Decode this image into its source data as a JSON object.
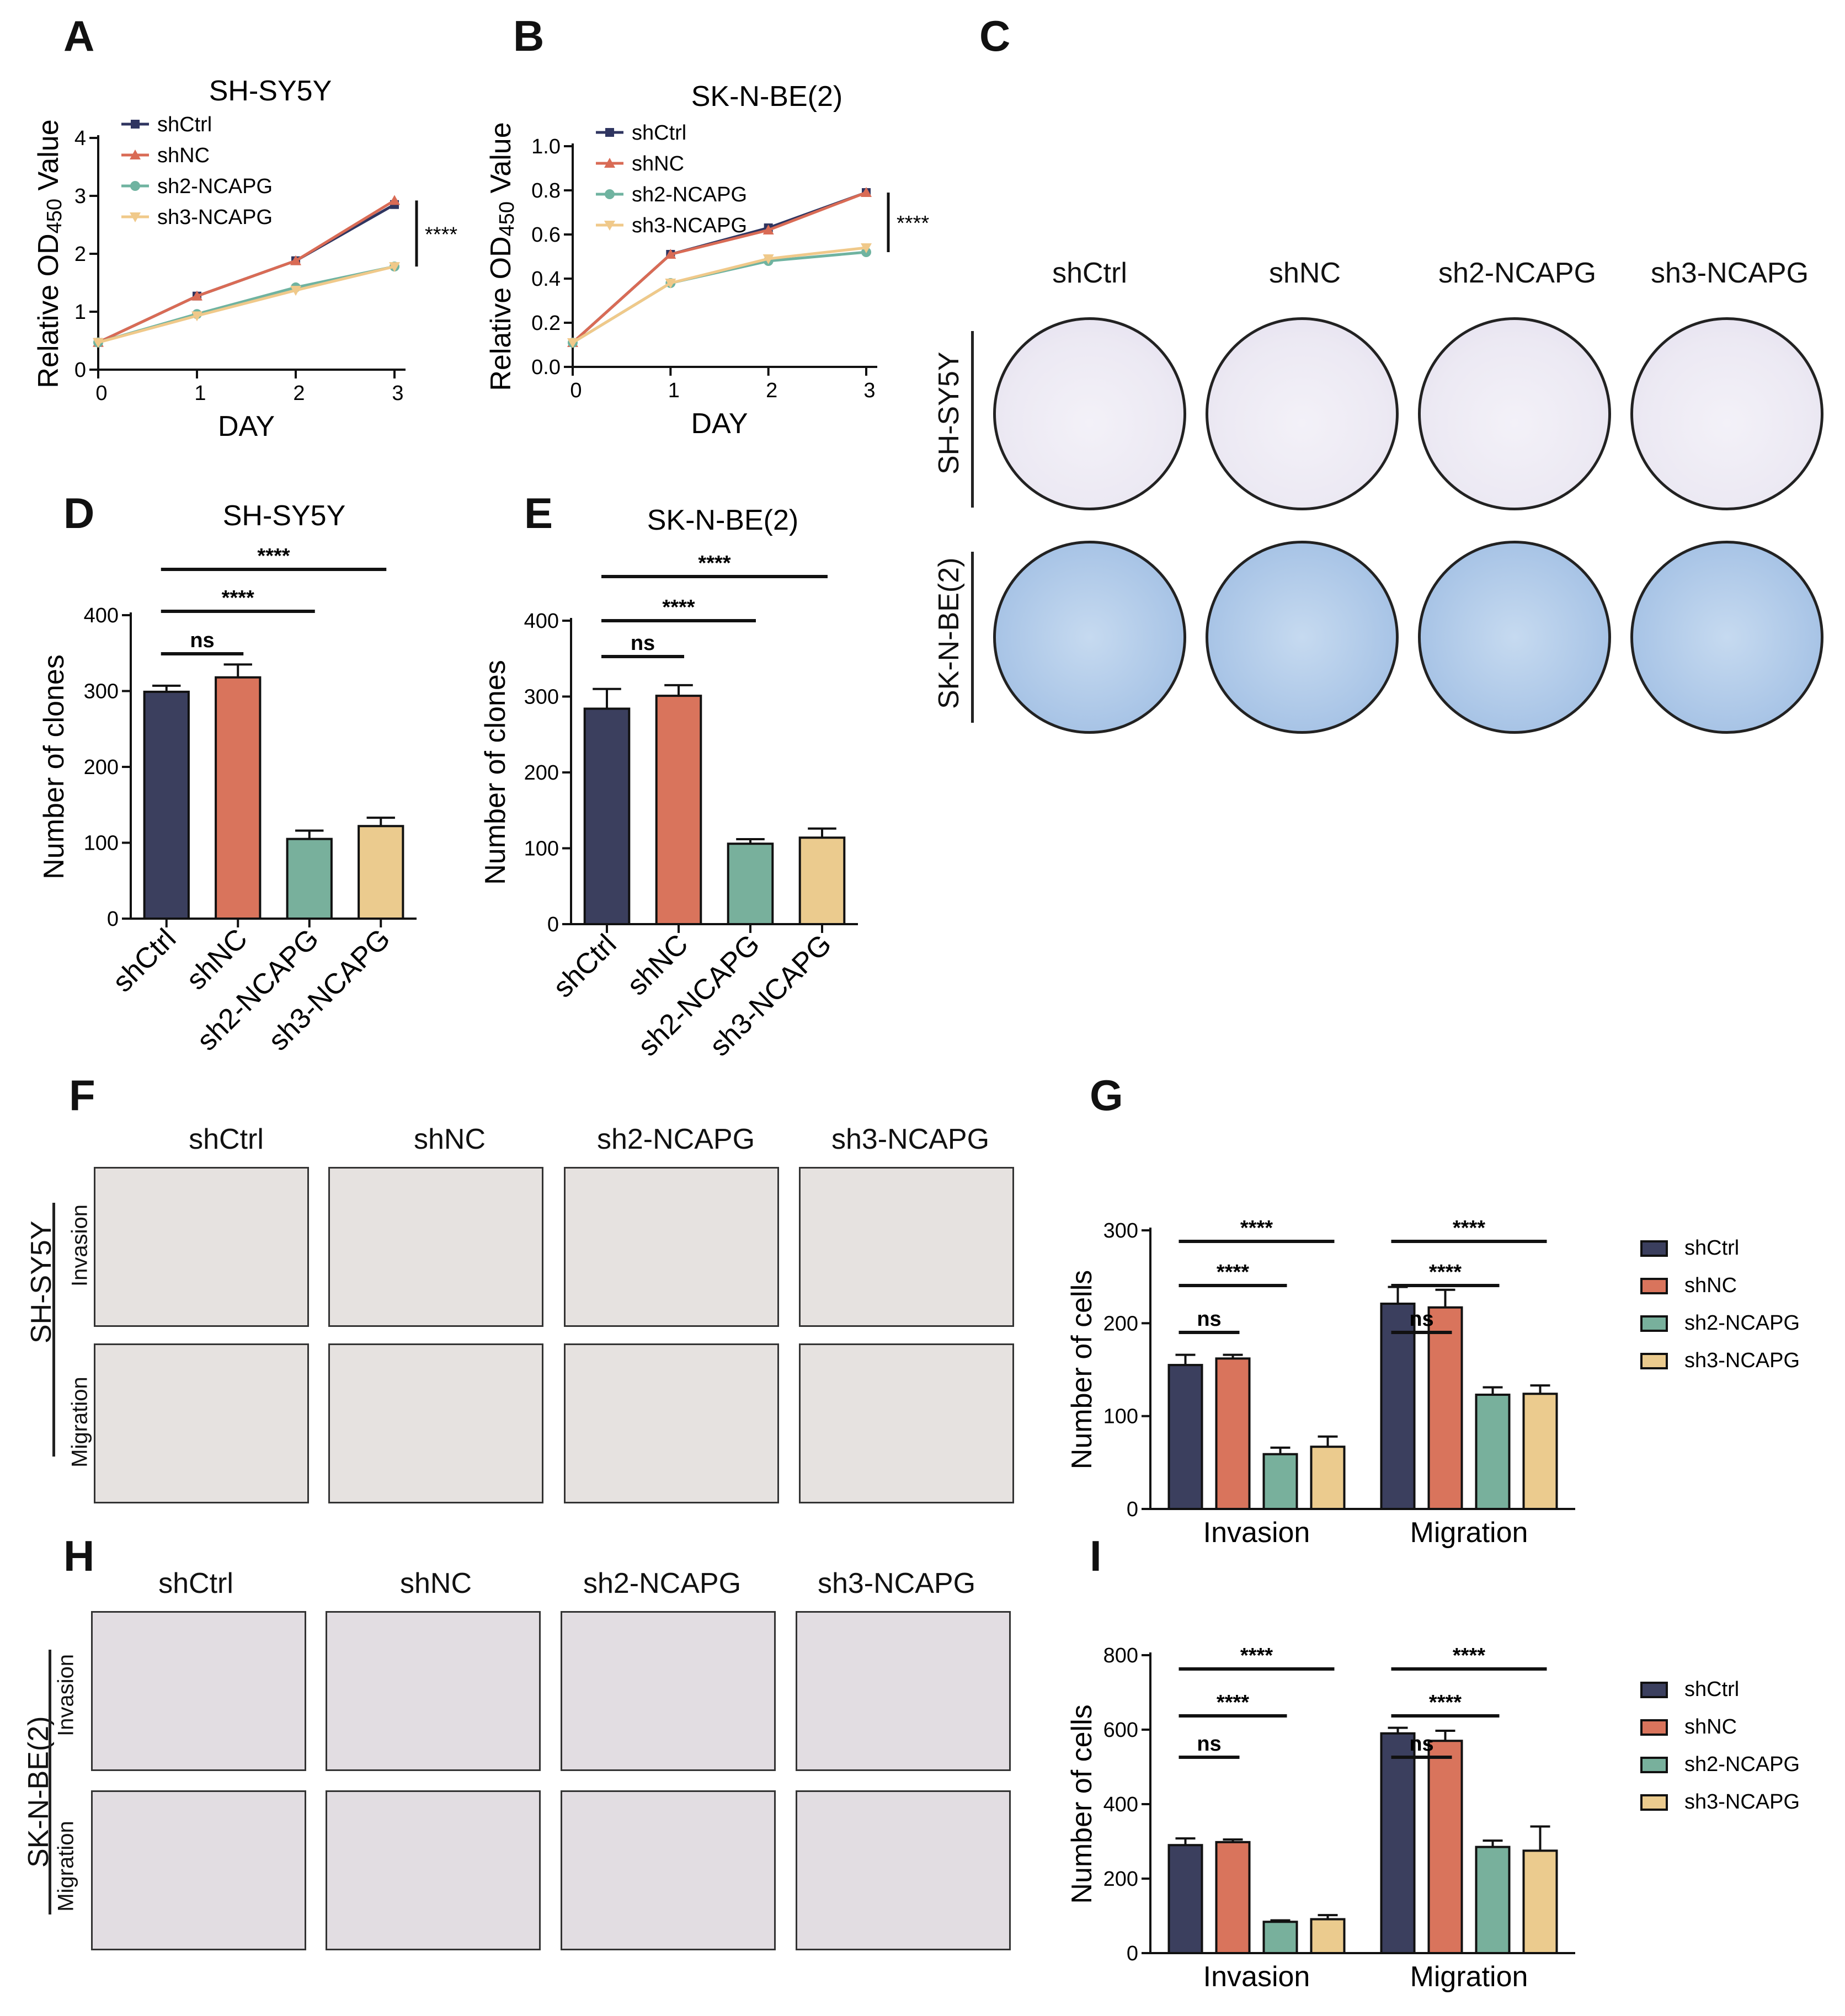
{
  "panel_labels": {
    "A": "A",
    "B": "B",
    "C": "C",
    "D": "D",
    "E": "E",
    "F": "F",
    "G": "G",
    "H": "H",
    "I": "I"
  },
  "colors": {
    "shCtrl": "#3b3f5e",
    "shNC": "#d9745c",
    "sh2-NCAPG": "#78b09c",
    "sh3-NCAPG": "#ebcb8e",
    "line_shCtrl": "#2f3560",
    "line_shNC": "#d96b55",
    "line_sh2": "#6fb3a0",
    "line_sh3": "#f0c98a"
  },
  "panel_C": {
    "columns": [
      "shCtrl",
      "shNC",
      "sh2-NCAPG",
      "sh3-NCAPG"
    ],
    "rows": [
      "SH-SY5Y",
      "SK-N-BE(2)"
    ]
  },
  "panel_F": {
    "columns": [
      "shCtrl",
      "shNC",
      "sh2-NCAPG",
      "sh3-NCAPG"
    ],
    "row_label": "SH-SY5Y",
    "sub_rows": [
      "Invasion",
      "Migration"
    ]
  },
  "panel_H": {
    "columns": [
      "shCtrl",
      "shNC",
      "sh2-NCAPG",
      "sh3-NCAPG"
    ],
    "row_label": "SK-N-BE(2)",
    "sub_rows": [
      "Invasion",
      "Migration"
    ]
  },
  "chart_data": [
    {
      "id": "A",
      "type": "line",
      "title": "SH-SY5Y",
      "xlabel": "DAY",
      "ylabel": "Relative OD450 Value",
      "x": [
        0,
        1,
        2,
        3
      ],
      "xlim": [
        0,
        3
      ],
      "ylim": [
        0,
        4
      ],
      "yticks": [
        0,
        1,
        2,
        3,
        4
      ],
      "series": [
        {
          "name": "shCtrl",
          "values": [
            0.47,
            1.27,
            1.88,
            2.85
          ]
        },
        {
          "name": "shNC",
          "values": [
            0.47,
            1.27,
            1.88,
            2.92
          ]
        },
        {
          "name": "sh2-NCAPG",
          "values": [
            0.47,
            0.96,
            1.42,
            1.78
          ]
        },
        {
          "name": "sh3-NCAPG",
          "values": [
            0.47,
            0.93,
            1.37,
            1.78
          ]
        }
      ],
      "annotations": [
        "****"
      ]
    },
    {
      "id": "B",
      "type": "line",
      "title": "SK-N-BE(2)",
      "xlabel": "DAY",
      "ylabel": "Relative OD450 Value",
      "x": [
        0,
        1,
        2,
        3
      ],
      "xlim": [
        0,
        3
      ],
      "ylim": [
        0,
        1.0
      ],
      "yticks": [
        0.0,
        0.2,
        0.4,
        0.6,
        0.8,
        1.0
      ],
      "series": [
        {
          "name": "shCtrl",
          "values": [
            0.11,
            0.51,
            0.63,
            0.79
          ]
        },
        {
          "name": "shNC",
          "values": [
            0.11,
            0.51,
            0.62,
            0.79
          ]
        },
        {
          "name": "sh2-NCAPG",
          "values": [
            0.11,
            0.38,
            0.48,
            0.52
          ]
        },
        {
          "name": "sh3-NCAPG",
          "values": [
            0.11,
            0.38,
            0.49,
            0.54
          ]
        }
      ],
      "annotations": [
        "****"
      ]
    },
    {
      "id": "D",
      "type": "bar",
      "title": "SH-SY5Y",
      "ylabel": "Number of clones",
      "categories": [
        "shCtrl",
        "shNC",
        "sh2-NCAPG",
        "sh3-NCAPG"
      ],
      "values": [
        299,
        318,
        105,
        122
      ],
      "errors": [
        8,
        17,
        11,
        11
      ],
      "ylim": [
        0,
        400
      ],
      "yticks": [
        0,
        100,
        200,
        300,
        400
      ],
      "significance": [
        {
          "label": "ns",
          "from": 0,
          "to": 1
        },
        {
          "label": "****",
          "from": 0,
          "to": 2
        },
        {
          "label": "****",
          "from": 0,
          "to": 3
        }
      ]
    },
    {
      "id": "E",
      "type": "bar",
      "title": "SK-N-BE(2)",
      "ylabel": "Number of clones",
      "categories": [
        "shCtrl",
        "shNC",
        "sh2-NCAPG",
        "sh3-NCAPG"
      ],
      "values": [
        284,
        301,
        106,
        114
      ],
      "errors": [
        26,
        14,
        6,
        12
      ],
      "ylim": [
        0,
        400
      ],
      "yticks": [
        0,
        100,
        200,
        300,
        400
      ],
      "significance": [
        {
          "label": "ns",
          "from": 0,
          "to": 1
        },
        {
          "label": "****",
          "from": 0,
          "to": 2
        },
        {
          "label": "****",
          "from": 0,
          "to": 3
        }
      ]
    },
    {
      "id": "G",
      "type": "bar",
      "ylabel": "Number of cells",
      "categories": [
        "Invasion",
        "Migration"
      ],
      "series": [
        {
          "name": "shCtrl",
          "values": [
            155,
            221
          ],
          "errors": [
            11,
            18
          ]
        },
        {
          "name": "shNC",
          "values": [
            162,
            217
          ],
          "errors": [
            4,
            19
          ]
        },
        {
          "name": "sh2-NCAPG",
          "values": [
            59,
            123
          ],
          "errors": [
            7,
            8
          ]
        },
        {
          "name": "sh3-NCAPG",
          "values": [
            67,
            124
          ],
          "errors": [
            11,
            9
          ]
        }
      ],
      "ylim": [
        0,
        300
      ],
      "yticks": [
        0,
        100,
        200,
        300
      ],
      "legend": "right",
      "significance": [
        {
          "group": 0,
          "label": "ns",
          "from": 0,
          "to": 1
        },
        {
          "group": 0,
          "label": "****",
          "from": 0,
          "to": 2
        },
        {
          "group": 0,
          "label": "****",
          "from": 0,
          "to": 3
        },
        {
          "group": 1,
          "label": "ns",
          "from": 0,
          "to": 1
        },
        {
          "group": 1,
          "label": "****",
          "from": 0,
          "to": 2
        },
        {
          "group": 1,
          "label": "****",
          "from": 0,
          "to": 3
        }
      ]
    },
    {
      "id": "I",
      "type": "bar",
      "ylabel": "Number of cells",
      "categories": [
        "Invasion",
        "Migration"
      ],
      "series": [
        {
          "name": "shCtrl",
          "values": [
            290,
            590
          ],
          "errors": [
            18,
            15
          ]
        },
        {
          "name": "shNC",
          "values": [
            298,
            570
          ],
          "errors": [
            7,
            27
          ]
        },
        {
          "name": "sh2-NCAPG",
          "values": [
            84,
            285
          ],
          "errors": [
            4,
            17
          ]
        },
        {
          "name": "sh3-NCAPG",
          "values": [
            91,
            275
          ],
          "errors": [
            11,
            65
          ]
        }
      ],
      "ylim": [
        0,
        800
      ],
      "yticks": [
        0,
        200,
        400,
        600,
        800
      ],
      "legend": "right",
      "significance": [
        {
          "group": 0,
          "label": "ns",
          "from": 0,
          "to": 1
        },
        {
          "group": 0,
          "label": "****",
          "from": 0,
          "to": 2
        },
        {
          "group": 0,
          "label": "****",
          "from": 0,
          "to": 3
        },
        {
          "group": 1,
          "label": "ns",
          "from": 0,
          "to": 1
        },
        {
          "group": 1,
          "label": "****",
          "from": 0,
          "to": 2
        },
        {
          "group": 1,
          "label": "****",
          "from": 0,
          "to": 3
        }
      ]
    }
  ]
}
